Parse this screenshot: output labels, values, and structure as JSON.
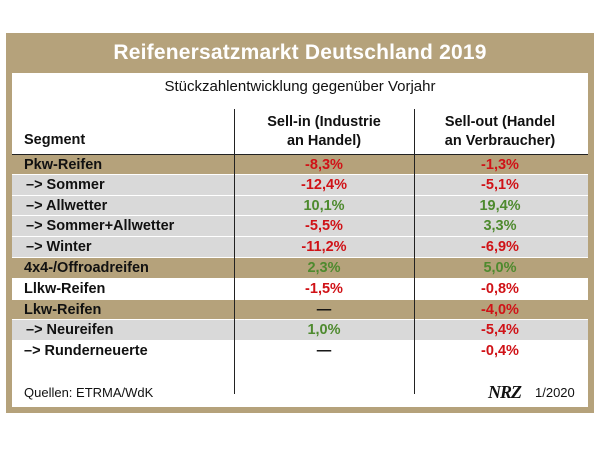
{
  "title": "Reifenersatzmarkt Deutschland 2019",
  "subtitle": "Stückzahlentwicklung gegenüber Vorjahr",
  "columns": {
    "segment": "Segment",
    "sellin_line1": "Sell-in (Industrie",
    "sellin_line2": "an Handel)",
    "sellout_line1": "Sell-out (Handel",
    "sellout_line2": "an Verbraucher)"
  },
  "rows": [
    {
      "segment": "Pkw-Reifen",
      "sellin": "-8,3%",
      "sellout": "-1,3%"
    },
    {
      "segment": "–> Sommer",
      "sellin": "-12,4%",
      "sellout": "-5,1%"
    },
    {
      "segment": "–> Allwetter",
      "sellin": "10,1%",
      "sellout": "19,4%"
    },
    {
      "segment": "–> Sommer+Allwetter",
      "sellin": "-5,5%",
      "sellout": "3,3%"
    },
    {
      "segment": "–> Winter",
      "sellin": "-11,2%",
      "sellout": "-6,9%"
    },
    {
      "segment": "4x4-/Offroadreifen",
      "sellin": "2,3%",
      "sellout": "5,0%"
    },
    {
      "segment": "Llkw-Reifen",
      "sellin": "-1,5%",
      "sellout": "-0,8%"
    },
    {
      "segment": "Lkw-Reifen",
      "sellin": "—",
      "sellout": "-4,0%"
    },
    {
      "segment": "–> Neureifen",
      "sellin": "1,0%",
      "sellout": "-5,4%"
    },
    {
      "segment": "–> Runderneuerte",
      "sellin": "—",
      "sellout": "-0,4%"
    }
  ],
  "footer": {
    "source": "Quellen: ETRMA/WdK",
    "logo": "NRZ",
    "issue": "1/2020"
  },
  "colors": {
    "frame": "#b5a27b",
    "negative": "#d01217",
    "positive": "#4e8a2e",
    "subrow": "#d9d9d9"
  }
}
